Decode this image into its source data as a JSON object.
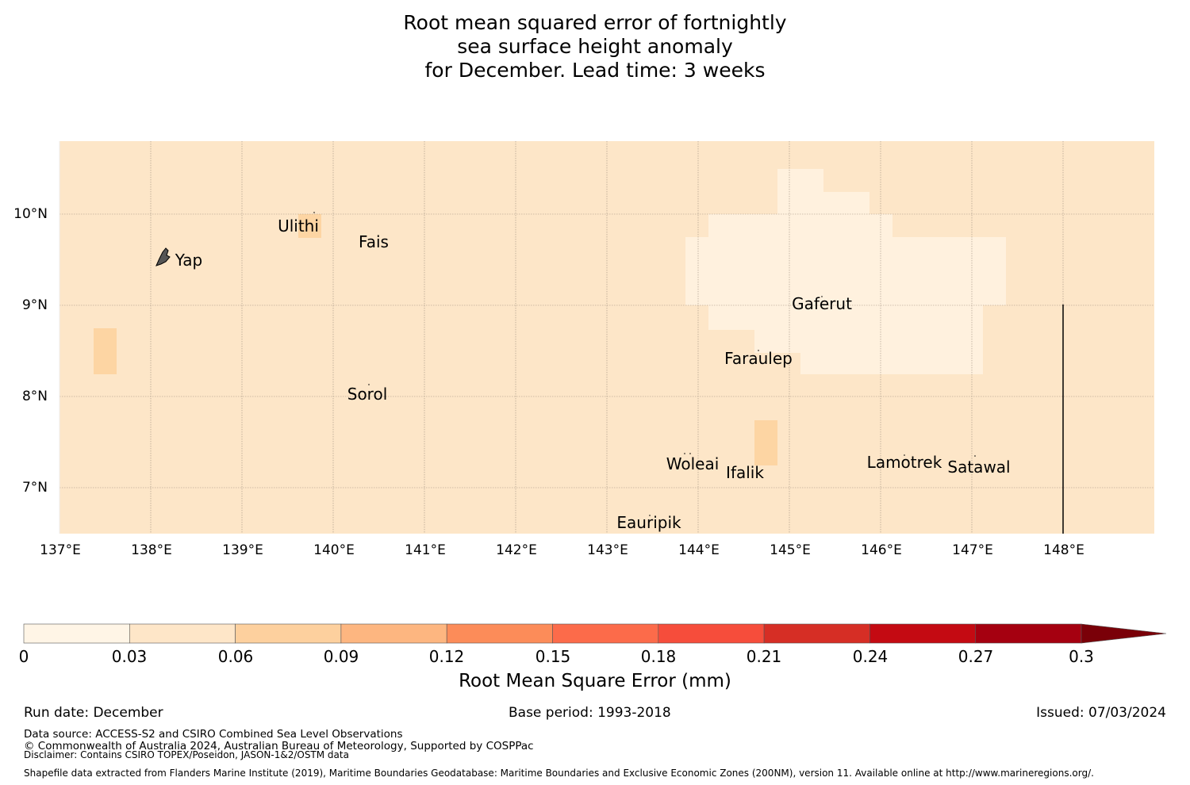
{
  "title": {
    "line1": "Root mean squared error of fortnightly",
    "line2": "sea surface height anomaly",
    "line3": "for December. Lead time: 3 weeks"
  },
  "map": {
    "background_color": "#fde6c8",
    "lon_ticks": [
      "137°E",
      "138°E",
      "139°E",
      "140°E",
      "141°E",
      "142°E",
      "143°E",
      "144°E",
      "145°E",
      "146°E",
      "147°E",
      "148°E"
    ],
    "lat_ticks": [
      "10°N",
      "9°N",
      "8°N",
      "7°N"
    ],
    "places": [
      {
        "name": "Ulithi"
      },
      {
        "name": "Fais"
      },
      {
        "name": "Yap"
      },
      {
        "name": "Gaferut"
      },
      {
        "name": "Faraulep"
      },
      {
        "name": "Sorol"
      },
      {
        "name": "Woleai"
      },
      {
        "name": "Ifalik"
      },
      {
        "name": "Lamotrek"
      },
      {
        "name": "Satawal"
      },
      {
        "name": "Eauripik"
      }
    ]
  },
  "colorbar": {
    "ticks": [
      "0",
      "0.03",
      "0.06",
      "0.09",
      "0.12",
      "0.15",
      "0.18",
      "0.21",
      "0.24",
      "0.27",
      "0.3"
    ],
    "colors": [
      "#fff5e6",
      "#fee6c8",
      "#fdd09e",
      "#fdb680",
      "#fc8c59",
      "#fc6b4a",
      "#f64d3b",
      "#d62e25",
      "#c40a12",
      "#a50010"
    ],
    "extend_color": "#7a0008",
    "label": "Root Mean Square Error (mm)"
  },
  "footer": {
    "run_date": "Run date: December",
    "base_period": "Base period: 1993-2018",
    "issued": "Issued: 07/03/2024",
    "data_source": "Data source: ACCESS-S2 and CSIRO Combined Sea Level Observations",
    "copyright": "© Commonwealth of Australia 2024, Australian Bureau of Meteorology, Supported by COSPPac",
    "disclaimer": "Disclaimer: Contains CSIRO TOPEX/Poseidon, JASON-1&2/OSTM data",
    "shapefile": "Shapefile data extracted from Flanders Marine Institute (2019), Maritime Boundaries Geodatabase: Maritime Boundaries and Exclusive Economic Zones (200NM), version 11. Available online at http://www.marineregions.org/."
  }
}
